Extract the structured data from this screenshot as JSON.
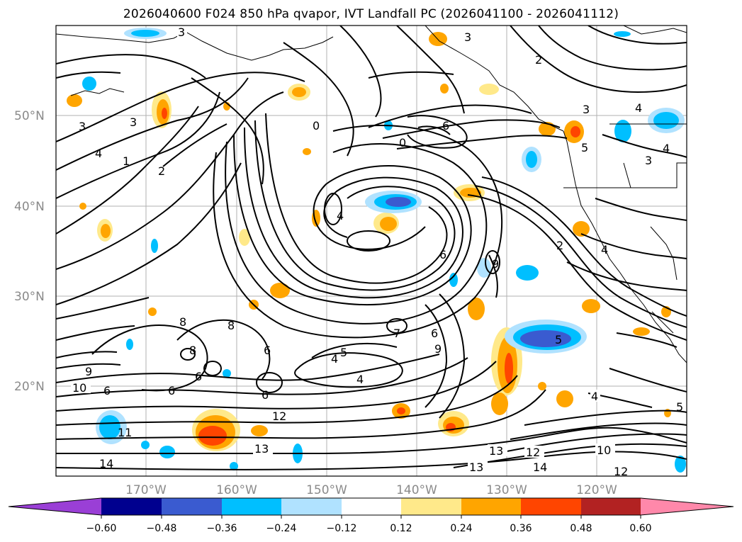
{
  "title": "2026040600 F024 850 hPa qvapor, IVT Landfall PC (2026041100 - 2026041112)",
  "lat_labels": [
    "50°N",
    "40°N",
    "30°N",
    "20°N"
  ],
  "lon_labels": [
    "170°W",
    "160°W",
    "150°W",
    "140°W",
    "130°W",
    "120°W"
  ],
  "colorbar": {
    "tick_labels": [
      "−0.60",
      "−0.48",
      "−0.36",
      "−0.24",
      "−0.12",
      "0.12",
      "0.24",
      "0.36",
      "0.48",
      "0.60"
    ],
    "colors": [
      "#9a3fd6",
      "#00008f",
      "#3a5bd0",
      "#00bfff",
      "#b0e2ff",
      "#ffffff",
      "#ffe98a",
      "#ffa500",
      "#ff4500",
      "#b22222",
      "#ff88aa"
    ]
  },
  "contour_labels": [
    "3",
    "3",
    "2",
    "3",
    "3",
    "4",
    "1",
    "2",
    "0",
    "0",
    "4",
    "6",
    "9",
    "6",
    "3",
    "4",
    "2",
    "5",
    "3",
    "4",
    "4",
    "9",
    "5",
    "6",
    "4",
    "7",
    "5",
    "4",
    "6",
    "8",
    "6",
    "8",
    "6",
    "6",
    "10",
    "9",
    "6",
    "8",
    "12",
    "11",
    "13",
    "13",
    "13",
    "12",
    "14",
    "14",
    "12",
    "10",
    "4",
    "5"
  ]
}
